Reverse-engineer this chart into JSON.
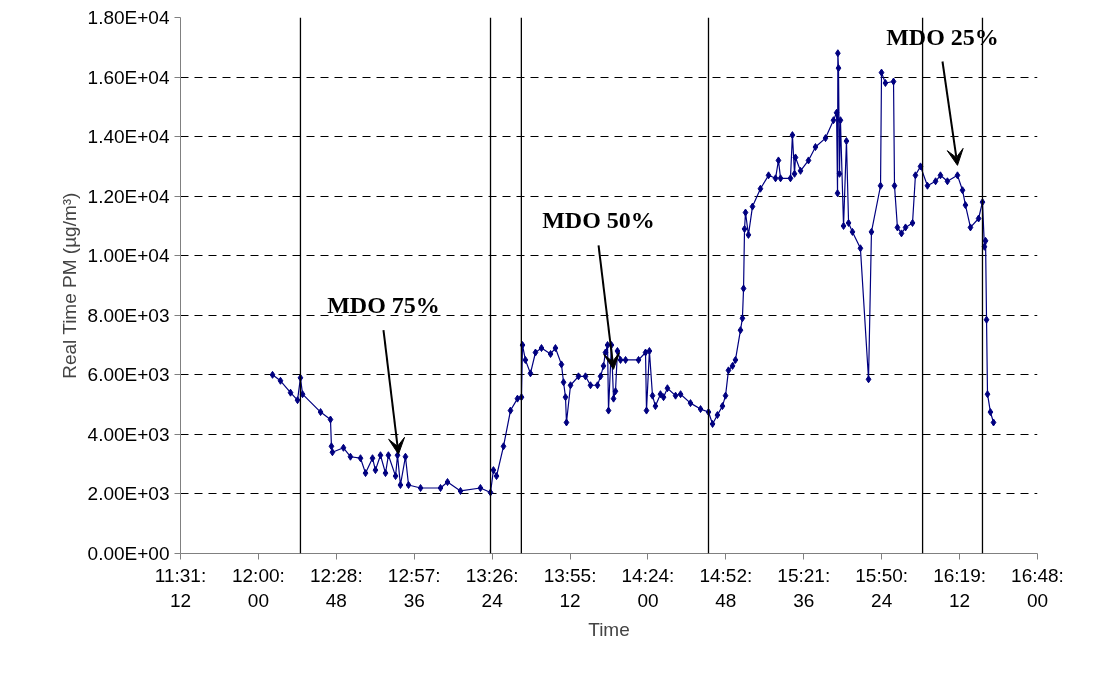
{
  "chart_data": {
    "type": "line",
    "xlabel": "Time",
    "ylabel": "Real Time PM (µg/m³)",
    "xlim": [
      11.52,
      16.8
    ],
    "xticks": [
      {
        "value": 11.52,
        "label": "11:31:12"
      },
      {
        "value": 12.0,
        "label": "12:00:00"
      },
      {
        "value": 12.48,
        "label": "12:28:48"
      },
      {
        "value": 12.96,
        "label": "12:57:36"
      },
      {
        "value": 13.44,
        "label": "13:26:24"
      },
      {
        "value": 13.92,
        "label": "13:55:12"
      },
      {
        "value": 14.4,
        "label": "14:24:00"
      },
      {
        "value": 14.88,
        "label": "14:52:48"
      },
      {
        "value": 15.36,
        "label": "15:21:36"
      },
      {
        "value": 15.84,
        "label": "15:50:24"
      },
      {
        "value": 16.32,
        "label": "16:19:12"
      },
      {
        "value": 16.8,
        "label": "16:48:00"
      }
    ],
    "ylim": [
      0,
      18000
    ],
    "yticks": [
      {
        "value": 0,
        "label": "0.00E+00"
      },
      {
        "value": 2000,
        "label": "2.00E+03"
      },
      {
        "value": 4000,
        "label": "4.00E+03"
      },
      {
        "value": 6000,
        "label": "6.00E+03"
      },
      {
        "value": 8000,
        "label": "8.00E+03"
      },
      {
        "value": 10000,
        "label": "1.00E+04"
      },
      {
        "value": 12000,
        "label": "1.20E+04"
      },
      {
        "value": 14000,
        "label": "1.40E+04"
      },
      {
        "value": 16000,
        "label": "1.60E+04"
      },
      {
        "value": 18000,
        "label": "1.80E+04"
      }
    ],
    "grid": "y",
    "marker": "diamond",
    "line_style": "solid",
    "ref_lines": [
      {
        "axis": "x",
        "value": 12.259,
        "color": "#000000"
      },
      {
        "axis": "x",
        "value": 13.43,
        "color": "#000000"
      },
      {
        "axis": "x",
        "value": 13.62,
        "color": "#000000"
      },
      {
        "axis": "x",
        "value": 14.773,
        "color": "#000000"
      },
      {
        "axis": "x",
        "value": 16.092,
        "color": "#000000"
      },
      {
        "axis": "x",
        "value": 16.461,
        "color": "#000000"
      }
    ],
    "annotations": [
      {
        "text": "MDO 75%",
        "x": 12.863,
        "y": 3200
      },
      {
        "text": "MDO 50%",
        "x": 14.188,
        "y": 6050
      },
      {
        "text": "MDO 25%",
        "x": 16.307,
        "y": 12900
      }
    ],
    "series": [
      {
        "color": "#000080",
        "x": [
          12.087,
          12.136,
          12.198,
          12.241,
          12.259,
          12.272,
          12.383,
          12.444,
          12.45,
          12.456,
          12.524,
          12.567,
          12.629,
          12.66,
          12.703,
          12.721,
          12.752,
          12.783,
          12.801,
          12.845,
          12.857,
          12.875,
          12.906,
          12.925,
          12.999,
          13.122,
          13.165,
          13.245,
          13.368,
          13.43,
          13.448,
          13.467,
          13.51,
          13.553,
          13.596,
          13.621,
          13.627,
          13.645,
          13.676,
          13.707,
          13.744,
          13.8,
          13.83,
          13.867,
          13.88,
          13.892,
          13.898,
          13.923,
          13.972,
          14.015,
          14.046,
          14.089,
          14.108,
          14.126,
          14.138,
          14.151,
          14.157,
          14.175,
          14.188,
          14.2,
          14.212,
          14.231,
          14.262,
          14.342,
          14.385,
          14.391,
          14.409,
          14.428,
          14.446,
          14.477,
          14.496,
          14.52,
          14.57,
          14.601,
          14.662,
          14.724,
          14.773,
          14.798,
          14.828,
          14.859,
          14.878,
          14.896,
          14.921,
          14.939,
          14.97,
          14.982,
          14.989,
          14.995,
          15.001,
          15.019,
          15.044,
          15.093,
          15.143,
          15.186,
          15.204,
          15.217,
          15.278,
          15.29,
          15.303,
          15.309,
          15.34,
          15.389,
          15.432,
          15.494,
          15.543,
          15.562,
          15.568,
          15.57,
          15.574,
          15.58,
          15.586,
          15.605,
          15.623,
          15.636,
          15.66,
          15.709,
          15.759,
          15.777,
          15.833,
          15.839,
          15.863,
          15.913,
          15.919,
          15.937,
          15.962,
          15.987,
          16.03,
          16.048,
          16.079,
          16.122,
          16.172,
          16.202,
          16.245,
          16.307,
          16.338,
          16.356,
          16.387,
          16.437,
          16.461,
          16.473,
          16.48,
          16.486,
          16.492,
          16.51,
          16.529
        ],
        "values": [
          6000,
          5800,
          5400,
          5150,
          5900,
          5350,
          4750,
          4500,
          3600,
          3400,
          3550,
          3250,
          3200,
          2700,
          3200,
          2800,
          3300,
          2700,
          3300,
          2600,
          3300,
          2300,
          3250,
          2300,
          2200,
          2200,
          2400,
          2100,
          2200,
          2050,
          2800,
          2600,
          3600,
          4800,
          5200,
          5250,
          7000,
          6500,
          6050,
          6750,
          6900,
          6700,
          6900,
          6350,
          5750,
          5250,
          4400,
          5650,
          5950,
          5950,
          5650,
          5650,
          5950,
          6300,
          6750,
          7000,
          4800,
          7000,
          5200,
          5450,
          6800,
          6500,
          6500,
          6500,
          6750,
          4800,
          6800,
          5300,
          4950,
          5350,
          5250,
          5550,
          5300,
          5350,
          5050,
          4850,
          4750,
          4350,
          4650,
          4950,
          5300,
          6150,
          6300,
          6500,
          7500,
          7900,
          8900,
          10900,
          11450,
          10700,
          11650,
          12250,
          12700,
          12600,
          13200,
          12600,
          12600,
          14050,
          12750,
          13300,
          12850,
          13200,
          13650,
          13950,
          14550,
          14800,
          12100,
          16800,
          16300,
          12750,
          14550,
          11000,
          13850,
          11100,
          10800,
          10250,
          5850,
          10800,
          12350,
          16150,
          15800,
          15850,
          12350,
          10950,
          10750,
          10950,
          11100,
          12700,
          13000,
          12350,
          12500,
          12700,
          12500,
          12700,
          12200,
          11700,
          10950,
          11250,
          11800,
          10300,
          10500,
          7850,
          5350,
          4750,
          4400
        ]
      }
    ]
  }
}
